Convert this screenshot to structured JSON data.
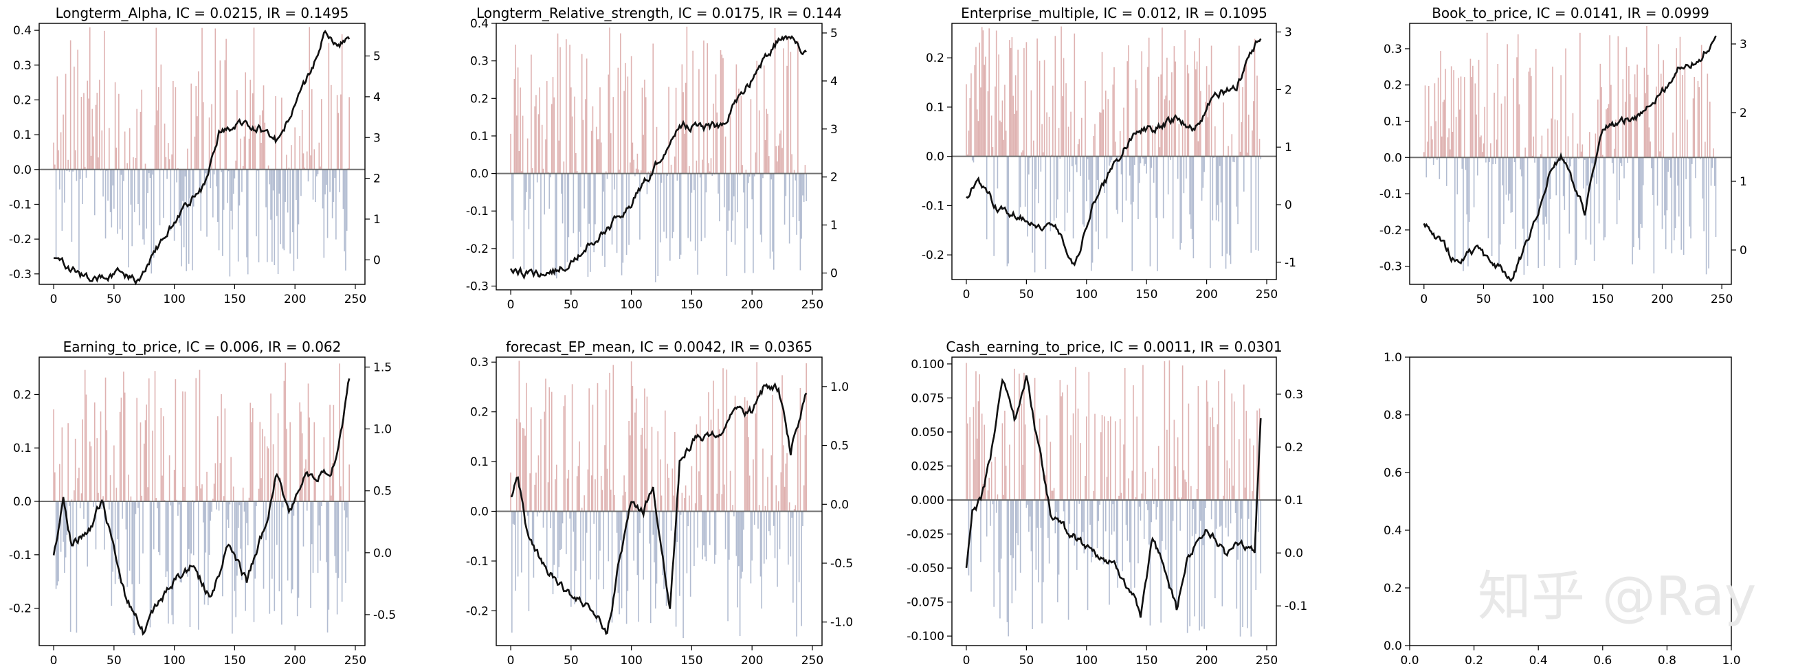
{
  "watermark": "知乎 @Ray",
  "chart_data": [
    {
      "type": "bar",
      "title": "Longterm_Alpha, IC = 0.0215, IR = 0.1495",
      "ylim": [
        -0.33,
        0.42
      ],
      "yticks": [
        -0.3,
        -0.2,
        -0.1,
        0.0,
        0.1,
        0.2,
        0.3,
        0.4
      ],
      "y2lim": [
        -0.6,
        5.8
      ],
      "y2ticks": [
        0,
        1,
        2,
        3,
        4,
        5
      ],
      "xlim": [
        -12,
        258
      ],
      "xticks": [
        0,
        50,
        100,
        150,
        200,
        250
      ],
      "n": 246,
      "bars_seed": 11,
      "line_knots": [
        [
          0,
          -0.25
        ],
        [
          12,
          -0.28
        ],
        [
          30,
          -0.32
        ],
        [
          55,
          -0.3
        ],
        [
          70,
          -0.32
        ],
        [
          90,
          -0.2
        ],
        [
          110,
          -0.1
        ],
        [
          125,
          -0.05
        ],
        [
          137,
          0.1
        ],
        [
          150,
          0.13
        ],
        [
          170,
          0.12
        ],
        [
          185,
          0.08
        ],
        [
          200,
          0.18
        ],
        [
          215,
          0.3
        ],
        [
          225,
          0.39
        ],
        [
          235,
          0.36
        ],
        [
          246,
          0.37
        ]
      ],
      "series": [
        {
          "name": "",
          "axis": "left",
          "kind": "bar",
          "color_pos": "#d9a5a3",
          "color_neg": "#a4b0c9"
        },
        {
          "name": "",
          "axis": "right",
          "kind": "line",
          "color": "#111111"
        }
      ]
    },
    {
      "type": "bar",
      "title": "Longterm_Relative_strength, IC = 0.0175, IR = 0.144",
      "ylim": [
        -0.31,
        0.4
      ],
      "yticks": [
        -0.3,
        -0.2,
        -0.1,
        0.0,
        0.1,
        0.2,
        0.3,
        0.4
      ],
      "y2lim": [
        -0.35,
        5.2
      ],
      "y2ticks": [
        0,
        1,
        2,
        3,
        4,
        5
      ],
      "xlim": [
        -12,
        258
      ],
      "xticks": [
        0,
        50,
        100,
        150,
        200,
        250
      ],
      "n": 246,
      "bars_seed": 23,
      "line_knots": [
        [
          0,
          -0.25
        ],
        [
          15,
          -0.27
        ],
        [
          40,
          -0.26
        ],
        [
          60,
          -0.2
        ],
        [
          80,
          -0.15
        ],
        [
          100,
          -0.08
        ],
        [
          120,
          0.02
        ],
        [
          140,
          0.13
        ],
        [
          160,
          0.12
        ],
        [
          175,
          0.13
        ],
        [
          190,
          0.2
        ],
        [
          210,
          0.3
        ],
        [
          225,
          0.37
        ],
        [
          235,
          0.35
        ],
        [
          246,
          0.32
        ]
      ],
      "series": [
        {
          "name": "",
          "axis": "left",
          "kind": "bar",
          "color_pos": "#d9a5a3",
          "color_neg": "#a4b0c9"
        },
        {
          "name": "",
          "axis": "right",
          "kind": "line",
          "color": "#111111"
        }
      ]
    },
    {
      "type": "bar",
      "title": "Enterprise_multiple, IC = 0.012, IR = 0.1095",
      "ylim": [
        -0.25,
        0.27
      ],
      "yticks": [
        -0.2,
        -0.1,
        0.0,
        0.1,
        0.2
      ],
      "y2lim": [
        -1.3,
        3.15
      ],
      "y2ticks": [
        -1,
        0,
        1,
        2,
        3
      ],
      "xlim": [
        -12,
        258
      ],
      "xticks": [
        0,
        50,
        100,
        150,
        200,
        250
      ],
      "n": 246,
      "bars_seed": 37,
      "line_knots": [
        [
          0,
          -0.08
        ],
        [
          10,
          -0.05
        ],
        [
          25,
          -0.1
        ],
        [
          50,
          -0.13
        ],
        [
          75,
          -0.15
        ],
        [
          90,
          -0.22
        ],
        [
          105,
          -0.1
        ],
        [
          120,
          -0.03
        ],
        [
          140,
          0.05
        ],
        [
          160,
          0.06
        ],
        [
          175,
          0.08
        ],
        [
          190,
          0.05
        ],
        [
          205,
          0.12
        ],
        [
          225,
          0.14
        ],
        [
          235,
          0.2
        ],
        [
          246,
          0.25
        ]
      ],
      "series": [
        {
          "name": "",
          "axis": "left",
          "kind": "bar",
          "color_pos": "#d9a5a3",
          "color_neg": "#a4b0c9"
        },
        {
          "name": "",
          "axis": "right",
          "kind": "line",
          "color": "#111111"
        }
      ]
    },
    {
      "type": "bar",
      "title": "Book_to_price, IC = 0.0141, IR = 0.0999",
      "ylim": [
        -0.35,
        0.37
      ],
      "yticks": [
        -0.3,
        -0.2,
        -0.1,
        0.0,
        0.1,
        0.2,
        0.3
      ],
      "y2lim": [
        -0.5,
        3.3
      ],
      "y2ticks": [
        0,
        1,
        2,
        3
      ],
      "xlim": [
        -12,
        258
      ],
      "xticks": [
        0,
        50,
        100,
        150,
        200,
        250
      ],
      "n": 246,
      "bars_seed": 53,
      "line_knots": [
        [
          0,
          -0.18
        ],
        [
          10,
          -0.22
        ],
        [
          25,
          -0.28
        ],
        [
          45,
          -0.26
        ],
        [
          60,
          -0.3
        ],
        [
          75,
          -0.33
        ],
        [
          90,
          -0.2
        ],
        [
          105,
          -0.05
        ],
        [
          115,
          0.0
        ],
        [
          125,
          -0.07
        ],
        [
          135,
          -0.15
        ],
        [
          150,
          0.08
        ],
        [
          165,
          0.1
        ],
        [
          185,
          0.12
        ],
        [
          200,
          0.18
        ],
        [
          215,
          0.25
        ],
        [
          230,
          0.27
        ],
        [
          246,
          0.33
        ]
      ],
      "series": [
        {
          "name": "",
          "axis": "left",
          "kind": "bar",
          "color_pos": "#d9a5a3",
          "color_neg": "#a4b0c9"
        },
        {
          "name": "",
          "axis": "right",
          "kind": "line",
          "color": "#111111"
        }
      ]
    },
    {
      "type": "bar",
      "title": "Earning_to_price, IC = 0.006, IR = 0.062",
      "ylim": [
        -0.27,
        0.27
      ],
      "yticks": [
        -0.2,
        -0.1,
        0.0,
        0.1,
        0.2
      ],
      "y2lim": [
        -0.75,
        1.58
      ],
      "y2ticks": [
        -0.5,
        0.0,
        0.5,
        1.0,
        1.5
      ],
      "xlim": [
        -12,
        258
      ],
      "xticks": [
        0,
        50,
        100,
        150,
        200,
        250
      ],
      "n": 246,
      "bars_seed": 71,
      "line_knots": [
        [
          0,
          -0.1
        ],
        [
          8,
          0.0
        ],
        [
          15,
          -0.08
        ],
        [
          30,
          -0.05
        ],
        [
          40,
          0.0
        ],
        [
          50,
          -0.08
        ],
        [
          60,
          -0.18
        ],
        [
          75,
          -0.25
        ],
        [
          85,
          -0.2
        ],
        [
          100,
          -0.15
        ],
        [
          115,
          -0.12
        ],
        [
          130,
          -0.18
        ],
        [
          145,
          -0.08
        ],
        [
          160,
          -0.15
        ],
        [
          175,
          -0.05
        ],
        [
          185,
          0.05
        ],
        [
          195,
          -0.02
        ],
        [
          210,
          0.05
        ],
        [
          230,
          0.05
        ],
        [
          240,
          0.15
        ],
        [
          246,
          0.25
        ]
      ],
      "series": [
        {
          "name": "",
          "axis": "left",
          "kind": "bar",
          "color_pos": "#d9a5a3",
          "color_neg": "#a4b0c9"
        },
        {
          "name": "",
          "axis": "right",
          "kind": "line",
          "color": "#111111"
        }
      ]
    },
    {
      "type": "bar",
      "title": "forecast_EP_mean, IC = 0.0042, IR = 0.0365",
      "ylim": [
        -0.27,
        0.31
      ],
      "yticks": [
        -0.2,
        -0.1,
        0.0,
        0.1,
        0.2,
        0.3
      ],
      "y2lim": [
        -1.2,
        1.25
      ],
      "y2ticks": [
        -1.0,
        -0.5,
        0.0,
        0.5,
        1.0
      ],
      "xlim": [
        -12,
        258
      ],
      "xticks": [
        0,
        50,
        100,
        150,
        200,
        250
      ],
      "n": 246,
      "bars_seed": 89,
      "line_knots": [
        [
          0,
          0.03
        ],
        [
          6,
          0.07
        ],
        [
          14,
          -0.05
        ],
        [
          25,
          -0.1
        ],
        [
          40,
          -0.15
        ],
        [
          55,
          -0.18
        ],
        [
          70,
          -0.2
        ],
        [
          80,
          -0.25
        ],
        [
          90,
          -0.1
        ],
        [
          100,
          0.02
        ],
        [
          110,
          0.0
        ],
        [
          118,
          0.05
        ],
        [
          125,
          -0.08
        ],
        [
          132,
          -0.2
        ],
        [
          140,
          0.1
        ],
        [
          155,
          0.15
        ],
        [
          170,
          0.15
        ],
        [
          185,
          0.2
        ],
        [
          200,
          0.2
        ],
        [
          210,
          0.25
        ],
        [
          222,
          0.25
        ],
        [
          232,
          0.12
        ],
        [
          246,
          0.25
        ]
      ],
      "series": [
        {
          "name": "",
          "axis": "left",
          "kind": "bar",
          "color_pos": "#d9a5a3",
          "color_neg": "#a4b0c9"
        },
        {
          "name": "",
          "axis": "right",
          "kind": "line",
          "color": "#111111"
        }
      ]
    },
    {
      "type": "bar",
      "title": "Cash_earning_to_price, IC = 0.0011, IR = 0.0301",
      "ylim": [
        -0.107,
        0.105
      ],
      "yticks": [
        -0.1,
        -0.075,
        -0.05,
        -0.025,
        0.0,
        0.025,
        0.05,
        0.075,
        0.1
      ],
      "y2lim": [
        -0.175,
        0.37
      ],
      "y2ticks": [
        -0.1,
        0.0,
        0.1,
        0.2,
        0.3
      ],
      "xlim": [
        -12,
        258
      ],
      "xticks": [
        0,
        50,
        100,
        150,
        200,
        250
      ],
      "n": 246,
      "bars_seed": 107,
      "line_knots": [
        [
          0,
          -0.05
        ],
        [
          5,
          -0.01
        ],
        [
          12,
          0.0
        ],
        [
          20,
          0.03
        ],
        [
          30,
          0.09
        ],
        [
          40,
          0.06
        ],
        [
          50,
          0.09
        ],
        [
          60,
          0.04
        ],
        [
          70,
          -0.01
        ],
        [
          80,
          -0.02
        ],
        [
          95,
          -0.03
        ],
        [
          110,
          -0.04
        ],
        [
          125,
          -0.05
        ],
        [
          140,
          -0.07
        ],
        [
          145,
          -0.09
        ],
        [
          155,
          -0.03
        ],
        [
          165,
          -0.05
        ],
        [
          175,
          -0.08
        ],
        [
          185,
          -0.04
        ],
        [
          200,
          -0.02
        ],
        [
          215,
          -0.04
        ],
        [
          225,
          -0.03
        ],
        [
          240,
          -0.04
        ],
        [
          245,
          0.06
        ],
        [
          246,
          0.07
        ]
      ],
      "series": [
        {
          "name": "",
          "axis": "left",
          "kind": "bar",
          "color_pos": "#d9a5a3",
          "color_neg": "#a4b0c9"
        },
        {
          "name": "",
          "axis": "right",
          "kind": "line",
          "color": "#111111"
        }
      ]
    },
    {
      "type": "scatter",
      "title": "",
      "xlim": [
        0.0,
        1.0
      ],
      "ylim": [
        0.0,
        1.0
      ],
      "xticks": [
        0.0,
        0.2,
        0.4,
        0.6,
        0.8,
        1.0
      ],
      "yticks": [
        0.0,
        0.2,
        0.4,
        0.6,
        0.8,
        1.0
      ],
      "series": []
    }
  ]
}
